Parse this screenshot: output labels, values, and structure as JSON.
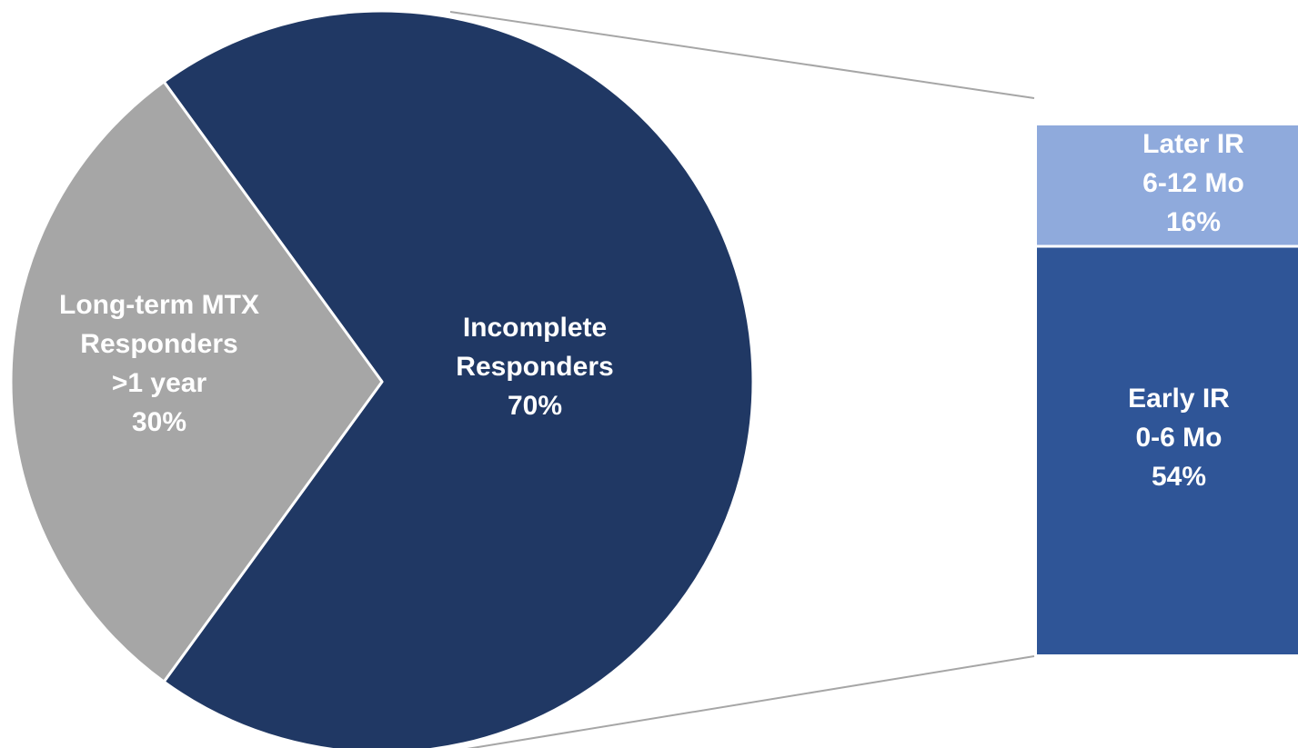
{
  "chart_data": {
    "type": "pie",
    "title": "",
    "pie": {
      "slices": [
        {
          "key": "long_term",
          "value": 30,
          "color": "#A6A6A6",
          "label_lines": [
            "Long-term MTX",
            "Responders",
            ">1 year",
            "30%"
          ]
        },
        {
          "key": "incomplete",
          "value": 70,
          "color": "#203864",
          "label_lines": [
            "Incomplete",
            "Responders",
            "70%"
          ]
        }
      ]
    },
    "breakdown": {
      "type": "stacked-bar",
      "of_slice": "incomplete",
      "segments": [
        {
          "key": "later_ir",
          "value": 16,
          "color": "#8FAADC",
          "label_lines": [
            "Later IR",
            "6-12 Mo",
            "16%"
          ]
        },
        {
          "key": "early_ir",
          "value": 54,
          "color": "#2F5597",
          "label_lines": [
            "Early IR",
            "0-6 Mo",
            "54%"
          ]
        }
      ]
    }
  }
}
